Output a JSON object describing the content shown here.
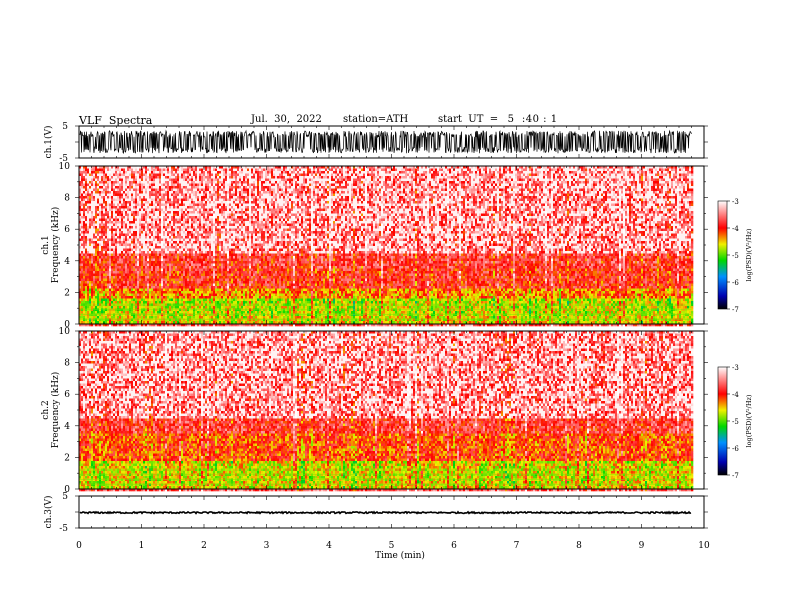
{
  "header": {
    "title": "VLF  Spectra",
    "date": "Jul.  30,  2022",
    "station_label": "station=",
    "station": "ATH",
    "start_label": "start  UT  =",
    "start_value": "5  :40 : 1"
  },
  "chart_data": [
    {
      "type": "line",
      "panel": "ch1-waveform",
      "ylabel": "ch.1(V)",
      "ylim": [
        -5,
        5
      ],
      "yticks": [
        "5",
        "-5"
      ],
      "xlim": [
        0,
        10
      ],
      "data_end_min": 9.8,
      "description_values": {
        "amplitude_envelope_v": [
          -3.5,
          3.5
        ]
      }
    },
    {
      "type": "heatmap",
      "panel": "ch1-spectrogram",
      "ylabel": "ch.1\nFrequency  (kHz)",
      "ylim": [
        0,
        10
      ],
      "yticks": [
        "0",
        "2",
        "4",
        "6",
        "8",
        "10"
      ],
      "xlim": [
        0,
        10
      ],
      "data_end_min": 9.8,
      "colorbar": {
        "label": "log(PSD)(V²/Hz)",
        "range": [
          -7,
          -3
        ],
        "ticks": [
          "-3",
          "-4",
          "-5",
          "-6",
          "-7"
        ]
      },
      "band_levels": [
        {
          "khz": [
            0.0,
            0.5
          ],
          "level": -4.6
        },
        {
          "khz": [
            0.5,
            1.6
          ],
          "level": -4.7
        },
        {
          "khz": [
            1.6,
            2.2
          ],
          "level": -4.3
        },
        {
          "khz": [
            2.2,
            3.5
          ],
          "level": -3.9
        },
        {
          "khz": [
            3.5,
            4.5
          ],
          "level": -3.8
        },
        {
          "khz": [
            4.5,
            10.0
          ],
          "level": -3.6
        }
      ]
    },
    {
      "type": "heatmap",
      "panel": "ch2-spectrogram",
      "ylabel": "ch.2\nFrequency  (kHz)",
      "ylim": [
        0,
        10
      ],
      "yticks": [
        "0",
        "2",
        "4",
        "6",
        "8",
        "10"
      ],
      "xlim": [
        0,
        10
      ],
      "data_end_min": 9.8,
      "colorbar": {
        "label": "log(PSD)(V²/Hz)",
        "range": [
          -7,
          -3
        ],
        "ticks": [
          "-3",
          "-4",
          "-5",
          "-6",
          "-7"
        ]
      },
      "band_levels": [
        {
          "khz": [
            0.0,
            0.5
          ],
          "level": -4.6
        },
        {
          "khz": [
            0.5,
            1.8
          ],
          "level": -4.6
        },
        {
          "khz": [
            1.8,
            3.5
          ],
          "level": -4.1
        },
        {
          "khz": [
            3.5,
            4.5
          ],
          "level": -3.8
        },
        {
          "khz": [
            4.5,
            10.0
          ],
          "level": -3.6
        }
      ]
    },
    {
      "type": "line",
      "panel": "ch3-waveform",
      "ylabel": "ch.3(V)",
      "ylim": [
        -5,
        5
      ],
      "yticks": [
        "5",
        "-5"
      ],
      "xlim": [
        0,
        10
      ],
      "data_end_min": 9.8,
      "description_values": {
        "mean_v": -0.2
      }
    }
  ],
  "xaxis": {
    "label": "Time  (min)",
    "ticks": [
      "0",
      "1",
      "2",
      "3",
      "4",
      "5",
      "6",
      "7",
      "8",
      "9",
      "10"
    ]
  }
}
